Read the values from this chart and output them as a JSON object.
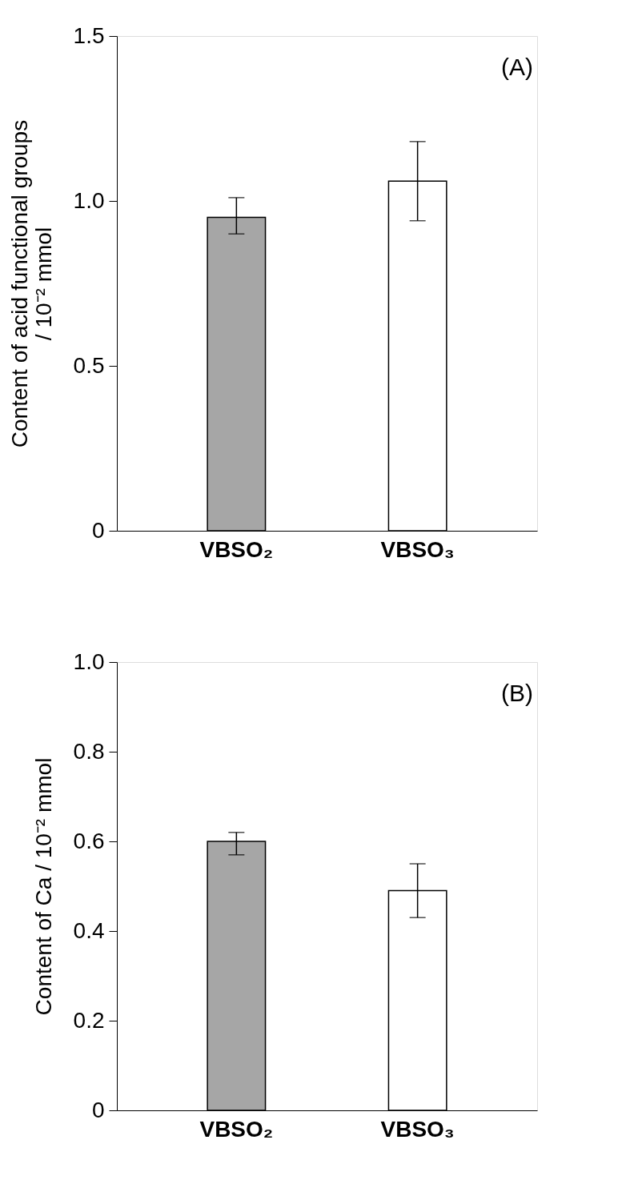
{
  "chart_data": [
    {
      "type": "bar",
      "ylabel": [
        "Content of acid functional groups",
        "/ 10⁻² mmol"
      ],
      "categories": [
        "VBSO₂",
        "VBSO₃"
      ],
      "values": [
        0.95,
        1.06
      ],
      "colors": [
        "#a6a6a6",
        "#ffffff"
      ],
      "errors": [
        [
          0.9,
          1.01
        ],
        [
          0.94,
          1.18
        ]
      ],
      "ylim": [
        0,
        1.5
      ],
      "yticks": [
        {
          "value": 0,
          "label": "0"
        },
        {
          "value": 0.5,
          "label": "0.5"
        },
        {
          "value": 1.0,
          "label": "1.0"
        },
        {
          "value": 1.5,
          "label": "1.5"
        }
      ],
      "annotations": [
        "(A)"
      ],
      "grid": false
    },
    {
      "type": "bar",
      "ylabel": "Content of Ca / 10⁻² mmol",
      "categories": [
        "VBSO₂",
        "VBSO₃"
      ],
      "values": [
        0.6,
        0.49
      ],
      "colors": [
        "#a6a6a6",
        "#ffffff"
      ],
      "errors": [
        [
          0.57,
          0.62
        ],
        [
          0.43,
          0.55
        ]
      ],
      "ylim": [
        0,
        1.0
      ],
      "yticks": [
        {
          "value": 0,
          "label": "0"
        },
        {
          "value": 0.2,
          "label": "0.2"
        },
        {
          "value": 0.4,
          "label": "0.4"
        },
        {
          "value": 0.6,
          "label": "0.6"
        },
        {
          "value": 0.8,
          "label": "0.8"
        },
        {
          "value": 1.0,
          "label": "1.0"
        }
      ],
      "annotations": [
        "(B)"
      ],
      "grid": false
    }
  ]
}
